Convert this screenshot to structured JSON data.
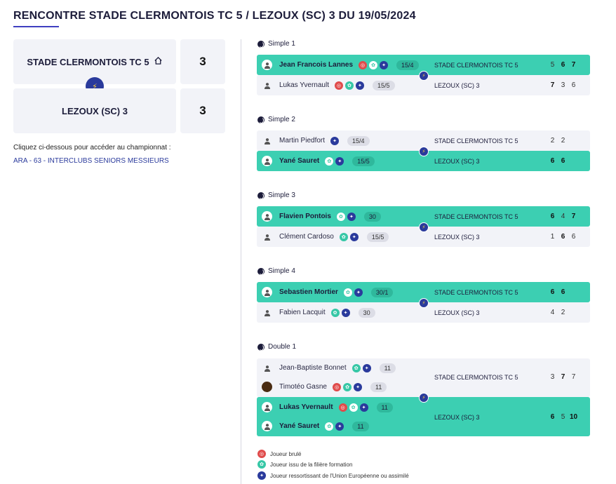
{
  "title": "RENCONTRE STADE CLERMONTOIS TC 5 / LEZOUX (SC) 3 DU 19/05/2024",
  "home_team": {
    "name": "STADE CLERMONTOIS TC 5",
    "score": "3",
    "icon": "home-icon"
  },
  "away_team": {
    "name": "LEZOUX (SC) 3",
    "score": "3"
  },
  "vs_icon": "lightning-icon",
  "championship": {
    "prompt": "Cliquez ci-dessous pour accéder au championnat :",
    "link": "ARA - 63 - INTERCLUBS SENIORS MESSIEURS"
  },
  "matches": [
    {
      "label": "Simple 1",
      "players": [
        {
          "name": "Jean Francois Lannes",
          "rank": "15/4",
          "badges": [
            "red",
            "teal",
            "blue"
          ],
          "winner": true,
          "club": "STADE CLERMONTOIS TC 5",
          "sets": [
            "5",
            "6",
            "7"
          ],
          "bold_sets": [
            false,
            true,
            true
          ]
        },
        {
          "name": "Lukas Yvernault",
          "rank": "15/5",
          "badges": [
            "red",
            "teal",
            "blue"
          ],
          "winner": false,
          "club": "LEZOUX (SC) 3",
          "sets": [
            "7",
            "3",
            "6"
          ],
          "bold_sets": [
            true,
            false,
            false
          ]
        }
      ]
    },
    {
      "label": "Simple 2",
      "players": [
        {
          "name": "Martin Piedfort",
          "rank": "15/4",
          "badges": [
            "blue"
          ],
          "winner": false,
          "club": "STADE CLERMONTOIS TC 5",
          "sets": [
            "2",
            "2"
          ],
          "bold_sets": [
            false,
            false
          ]
        },
        {
          "name": "Yané Sauret",
          "rank": "15/5",
          "badges": [
            "teal",
            "blue"
          ],
          "winner": true,
          "club": "LEZOUX (SC) 3",
          "sets": [
            "6",
            "6"
          ],
          "bold_sets": [
            true,
            true
          ]
        }
      ]
    },
    {
      "label": "Simple 3",
      "players": [
        {
          "name": "Flavien Pontois",
          "rank": "30",
          "badges": [
            "teal",
            "blue"
          ],
          "winner": true,
          "club": "STADE CLERMONTOIS TC 5",
          "sets": [
            "6",
            "4",
            "7"
          ],
          "bold_sets": [
            true,
            false,
            true
          ]
        },
        {
          "name": "Clément Cardoso",
          "rank": "15/5",
          "badges": [
            "teal",
            "blue"
          ],
          "winner": false,
          "club": "LEZOUX (SC) 3",
          "sets": [
            "1",
            "6",
            "6"
          ],
          "bold_sets": [
            false,
            true,
            false
          ]
        }
      ]
    },
    {
      "label": "Simple 4",
      "players": [
        {
          "name": "Sebastien Mortier",
          "rank": "30/1",
          "badges": [
            "teal",
            "blue"
          ],
          "winner": true,
          "club": "STADE CLERMONTOIS TC 5",
          "sets": [
            "6",
            "6"
          ],
          "bold_sets": [
            true,
            true
          ]
        },
        {
          "name": "Fabien Lacquit",
          "rank": "30",
          "badges": [
            "teal",
            "blue"
          ],
          "winner": false,
          "club": "LEZOUX (SC) 3",
          "sets": [
            "4",
            "2"
          ],
          "bold_sets": [
            false,
            false
          ]
        }
      ]
    }
  ],
  "double": {
    "label": "Double 1",
    "team1": {
      "club": "STADE CLERMONTOIS TC 5",
      "sets": [
        "3",
        "7",
        "7"
      ],
      "bold_sets": [
        false,
        true,
        false
      ],
      "players": [
        {
          "name": "Jean-Baptiste Bonnet",
          "rank": "11",
          "badges": [
            "teal",
            "blue"
          ]
        },
        {
          "name": "Timotéo Gasne",
          "rank": "11",
          "badges": [
            "red",
            "teal",
            "blue"
          ]
        }
      ]
    },
    "team2": {
      "club": "LEZOUX (SC) 3",
      "sets": [
        "6",
        "5",
        "10"
      ],
      "bold_sets": [
        true,
        false,
        true
      ],
      "players": [
        {
          "name": "Lukas Yvernault",
          "rank": "11",
          "badges": [
            "red",
            "teal",
            "blue"
          ]
        },
        {
          "name": "Yané Sauret",
          "rank": "11",
          "badges": [
            "teal",
            "blue"
          ]
        }
      ]
    }
  },
  "legend": [
    {
      "color": "red",
      "text": "Joueur brulé"
    },
    {
      "color": "teal",
      "text": "Joueur issu de la filière formation"
    },
    {
      "color": "blue",
      "text": "Joueur ressortissant de l'Union Européenne ou assimilé"
    }
  ],
  "colors": {
    "win": "#3ccfb2",
    "lose": "#f2f3f8",
    "accent": "#2a3a9c",
    "red": "#e04b4b",
    "teal": "#36c7a6"
  }
}
